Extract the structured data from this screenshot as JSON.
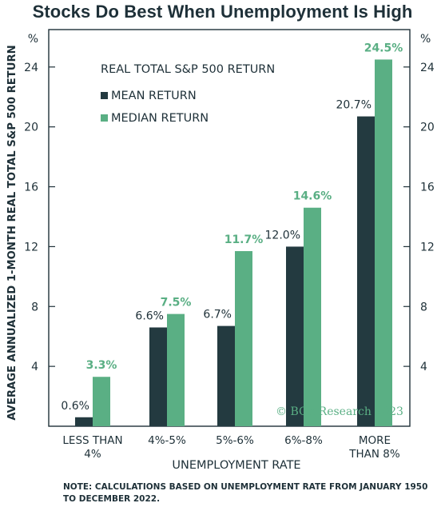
{
  "title": "Stocks Do Best When Unemployment Is High",
  "footnote": "NOTE: CALCULATIONS BASED ON UNEMPLOYMENT RATE FROM JANUARY 1950 TO DECEMBER 2022.",
  "watermark": "© BCα Research 2023",
  "colors": {
    "mean": "#233a40",
    "median": "#5aaf84",
    "text": "#1e3038"
  },
  "chart_data": {
    "type": "bar",
    "legend_title": "REAL TOTAL S&P 500  RETURN",
    "categories": [
      [
        "LESS THAN",
        "4%"
      ],
      [
        "4%-5%"
      ],
      [
        "5%-6%"
      ],
      [
        "6%-8%"
      ],
      [
        "MORE",
        "THAN 8%"
      ]
    ],
    "series": [
      {
        "name": "MEAN RETURN",
        "values": [
          0.6,
          6.6,
          6.7,
          12.0,
          20.7
        ],
        "labels": [
          "0.6%",
          "6.6%",
          "6.7%",
          "12.0%",
          "20.7%"
        ]
      },
      {
        "name": "MEDIAN RETURN",
        "values": [
          3.3,
          7.5,
          11.7,
          14.6,
          24.5
        ],
        "labels": [
          "3.3%",
          "7.5%",
          "11.7%",
          "14.6%",
          "24.5%"
        ]
      }
    ],
    "xlabel": "UNEMPLOYMENT RATE",
    "ylabel": "AVERAGE ANNUALIZED 1-MONTH REAL TOTAL S&P 500 RETURN",
    "yunit": "%",
    "yticks": [
      4,
      8,
      12,
      16,
      20,
      24
    ],
    "ylim": [
      0,
      26.5
    ],
    "legend_position": "top-left",
    "grid": false
  }
}
